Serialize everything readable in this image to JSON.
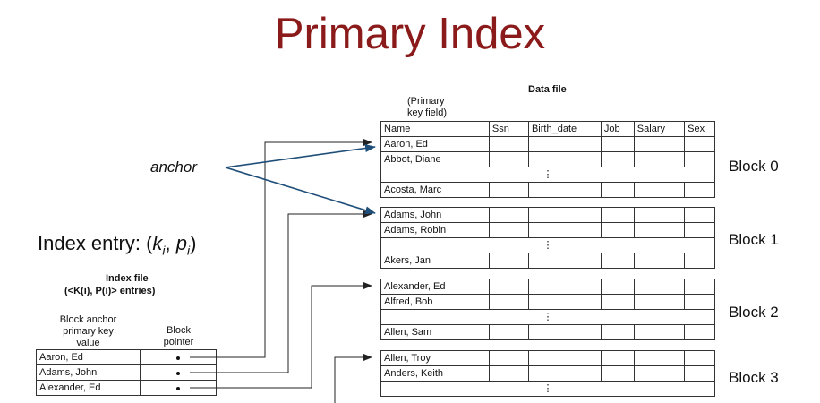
{
  "title": "Primary Index",
  "data_file_label": "Data file",
  "primary_key_label_1": "(Primary",
  "primary_key_label_2": "key field)",
  "columns": [
    "Name",
    "Ssn",
    "Birth_date",
    "Job",
    "Salary",
    "Sex"
  ],
  "blocks": [
    {
      "label": "Block 0",
      "first": "Aaron, Ed",
      "second": "Abbot, Diane",
      "last": "Acosta, Marc"
    },
    {
      "label": "Block 1",
      "first": "Adams, John",
      "second": "Adams, Robin",
      "last": "Akers, Jan"
    },
    {
      "label": "Block 2",
      "first": "Alexander, Ed",
      "second": "Alfred, Bob",
      "last": "Allen, Sam"
    },
    {
      "label": "Block 3",
      "first": "Allen, Troy",
      "second": "Anders, Keith",
      "last": ""
    }
  ],
  "ellipsis": "⋮",
  "anchor_label": "anchor",
  "index_entry_prefix": "Index entry: (",
  "index_entry_k": "k",
  "index_entry_i1": "i",
  "index_entry_sep": ", ",
  "index_entry_p": "p",
  "index_entry_i2": "i",
  "index_entry_suffix": ")",
  "index_file_label": "Index file",
  "index_file_entries_label": "(<K(i), P(i)> entries)",
  "anchor_col_header_1": "Block anchor",
  "anchor_col_header_2": "primary key",
  "anchor_col_header_3": "value",
  "pointer_col_header_1": "Block",
  "pointer_col_header_2": "pointer",
  "index_rows": [
    "Aaron, Ed",
    "Adams, John",
    "Alexander, Ed"
  ],
  "colors": {
    "title": "#8B1A1A",
    "anchor_arrow": "#1F4E79",
    "line": "#222222"
  }
}
